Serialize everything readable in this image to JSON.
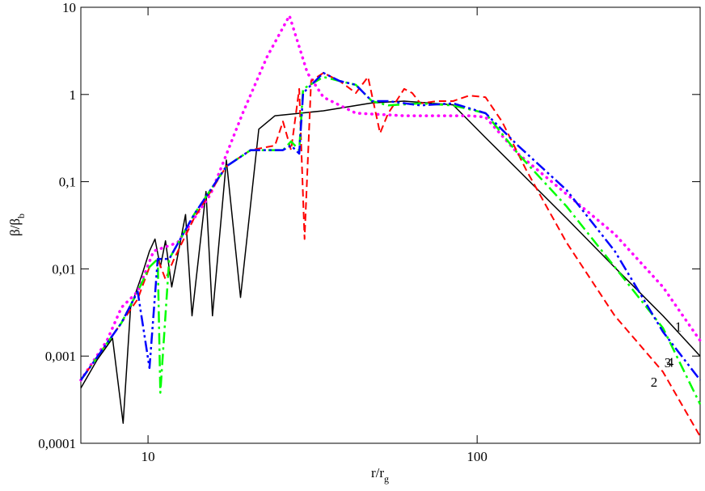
{
  "chart_data": {
    "type": "line",
    "x_label": {
      "main": "r/r",
      "sub": "g"
    },
    "y_label": {
      "main": "β/β",
      "sub": "b"
    },
    "xscale": "log",
    "yscale": "log",
    "xlim": [
      6.25,
      476
    ],
    "ylim": [
      0.0001,
      10
    ],
    "xticks": [
      10,
      100
    ],
    "yticks": [
      {
        "value": 0.0001,
        "label": "0,0001"
      },
      {
        "value": 0.001,
        "label": "0,001"
      },
      {
        "value": 0.01,
        "label": "0,01"
      },
      {
        "value": 0.1,
        "label": "0,1"
      },
      1,
      10
    ],
    "series": [
      {
        "name": "1",
        "color": "#000000",
        "style": "solid",
        "x": [
          6.25,
          7.0,
          7.8,
          8.4,
          8.85,
          9.6,
          10.1,
          10.5,
          10.9,
          11.3,
          11.8,
          13.0,
          13.6,
          15.0,
          15.7,
          17.3,
          19.1,
          21.7,
          24.3,
          34.1,
          47.9,
          60,
          84.5,
          106,
          133,
          187,
          262,
          367,
          476
        ],
        "values": [
          0.00043,
          0.0009,
          0.0016,
          0.00017,
          0.0036,
          0.0087,
          0.016,
          0.022,
          0.0105,
          0.021,
          0.0062,
          0.042,
          0.0029,
          0.077,
          0.0029,
          0.177,
          0.0047,
          0.4,
          0.57,
          0.65,
          0.8,
          0.84,
          0.76,
          0.32,
          0.137,
          0.038,
          0.0104,
          0.0029,
          0.001
        ]
      },
      {
        "color": "#ff00ff",
        "style": "dotted",
        "x": [
          6.25,
          7.5,
          8.3,
          9.3,
          10.4,
          12.3,
          15.5,
          19.4,
          23.0,
          26.9,
          30.5,
          34.1,
          42.8,
          60,
          94.5,
          106,
          133,
          187,
          262,
          367,
          476
        ],
        "values": [
          0.00053,
          0.0015,
          0.0036,
          0.0055,
          0.016,
          0.02,
          0.072,
          0.61,
          2.7,
          8,
          1.77,
          0.93,
          0.61,
          0.57,
          0.57,
          0.55,
          0.21,
          0.072,
          0.025,
          0.0062,
          0.0015
        ]
      },
      {
        "name": "2",
        "color": "#ff0000",
        "style": "dashed",
        "x": [
          6.25,
          8.3,
          9.3,
          10.1,
          10.7,
          11.3,
          12.0,
          13.8,
          17.3,
          20.5,
          24.3,
          25.7,
          27.2,
          28.8,
          29.9,
          31.3,
          34.1,
          38.2,
          42.8,
          46.6,
          50.7,
          53.7,
          56.8,
          60,
          63.5,
          67.2,
          75.5,
          84.5,
          94.5,
          106,
          119,
          141,
          187,
          262,
          367,
          476
        ],
        "values": [
          0.00053,
          0.0024,
          0.0045,
          0.0105,
          0.013,
          0.0076,
          0.013,
          0.038,
          0.15,
          0.23,
          0.26,
          0.49,
          0.23,
          1.16,
          0.022,
          1.43,
          1.77,
          1.43,
          1.04,
          1.59,
          0.36,
          0.61,
          0.84,
          1.16,
          1.04,
          0.79,
          0.84,
          0.84,
          0.97,
          0.93,
          0.49,
          0.136,
          0.02,
          0.0029,
          0.00066,
          0.00012
        ]
      },
      {
        "name": "3",
        "color": "#00ff00",
        "style": "dashdot",
        "x": [
          6.25,
          8.3,
          9.3,
          10.1,
          10.7,
          10.9,
          11.6,
          13.8,
          17.3,
          20.5,
          25.7,
          27.2,
          28.8,
          29.6,
          34.1,
          38.2,
          42.8,
          47.9,
          53.7,
          67.2,
          84.5,
          106,
          133,
          187,
          262,
          367,
          476
        ],
        "values": [
          0.00053,
          0.0024,
          0.0055,
          0.0105,
          0.013,
          0.00038,
          0.013,
          0.042,
          0.15,
          0.23,
          0.23,
          0.29,
          0.23,
          1.16,
          1.59,
          1.43,
          1.29,
          0.84,
          0.75,
          0.79,
          0.75,
          0.61,
          0.21,
          0.052,
          0.0105,
          0.0021,
          0.00028
        ]
      },
      {
        "name": "4",
        "color": "#0000ff",
        "style": "dashdotdot",
        "x": [
          6.25,
          8.3,
          9.3,
          10.1,
          10.7,
          11.6,
          13.8,
          17.3,
          20.5,
          25.7,
          27.2,
          28.8,
          29.6,
          34.1,
          38.2,
          42.8,
          47.9,
          53.7,
          67.2,
          84.5,
          106,
          133,
          187,
          262,
          367,
          476
        ],
        "values": [
          0.00053,
          0.0024,
          0.0055,
          0.00073,
          0.013,
          0.013,
          0.042,
          0.15,
          0.23,
          0.23,
          0.26,
          0.21,
          1.04,
          1.77,
          1.43,
          1.29,
          0.84,
          0.84,
          0.75,
          0.79,
          0.61,
          0.26,
          0.08,
          0.016,
          0.0019,
          0.00053
        ]
      }
    ]
  }
}
